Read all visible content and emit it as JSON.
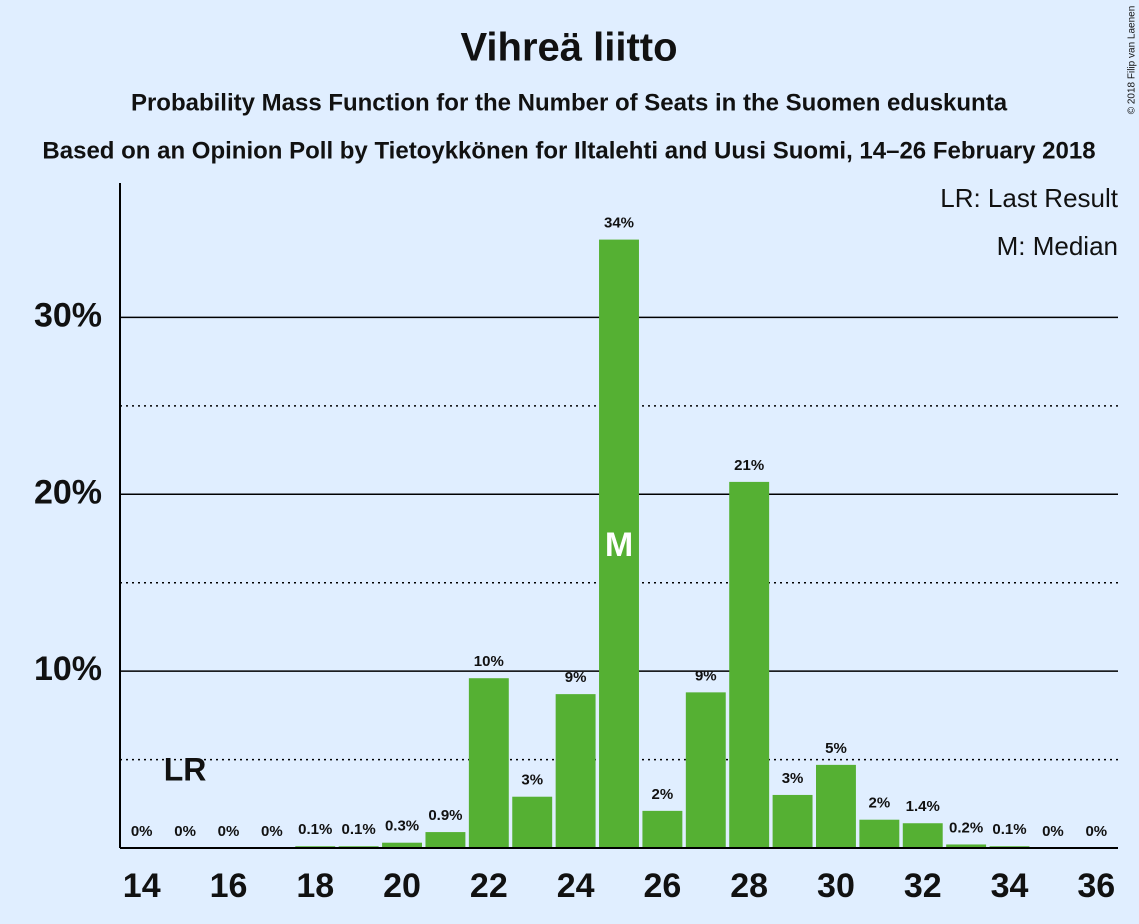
{
  "chart_data": {
    "type": "bar",
    "title": "Vihreä liitto",
    "subtitle": "Probability Mass Function for the Number of Seats in the Suomen eduskunta",
    "caption": "Based on an Opinion Poll by Tietoykkönen for Iltalehti and Uusi Suomi, 14–26 February 2018",
    "credit": "© 2018 Filip van Laenen",
    "x": [
      14,
      15,
      16,
      17,
      18,
      19,
      20,
      21,
      22,
      23,
      24,
      25,
      26,
      27,
      28,
      29,
      30,
      31,
      32,
      33,
      34,
      35,
      36
    ],
    "values": [
      0,
      0,
      0,
      0,
      0.1,
      0.1,
      0.3,
      0.9,
      9.6,
      2.9,
      8.7,
      34.4,
      2.1,
      8.8,
      20.7,
      3.0,
      4.7,
      1.6,
      1.4,
      0.2,
      0.1,
      0,
      0
    ],
    "value_labels": [
      "0%",
      "0%",
      "0%",
      "0%",
      "0.1%",
      "0.1%",
      "0.3%",
      "0.9%",
      "10%",
      "3%",
      "9%",
      "34%",
      "2%",
      "9%",
      "21%",
      "3%",
      "5%",
      "2%",
      "1.4%",
      "0.2%",
      "0.1%",
      "0%",
      "0%"
    ],
    "color": "#55b033",
    "xlim": [
      13.5,
      36.5
    ],
    "xticks": [
      14,
      16,
      18,
      20,
      22,
      24,
      26,
      28,
      30,
      32,
      34,
      36
    ],
    "ylim": [
      0,
      37.6
    ],
    "yticks": [
      {
        "value": 10,
        "label": "10%"
      },
      {
        "value": 20,
        "label": "20%"
      },
      {
        "value": 30,
        "label": "30%"
      }
    ],
    "minor_grid": [
      5,
      15,
      25
    ],
    "last_result": {
      "x": 15,
      "label": "LR"
    },
    "median": {
      "x": 25,
      "label": "M"
    },
    "legend": [
      "LR: Last Result",
      "M: Median"
    ]
  }
}
